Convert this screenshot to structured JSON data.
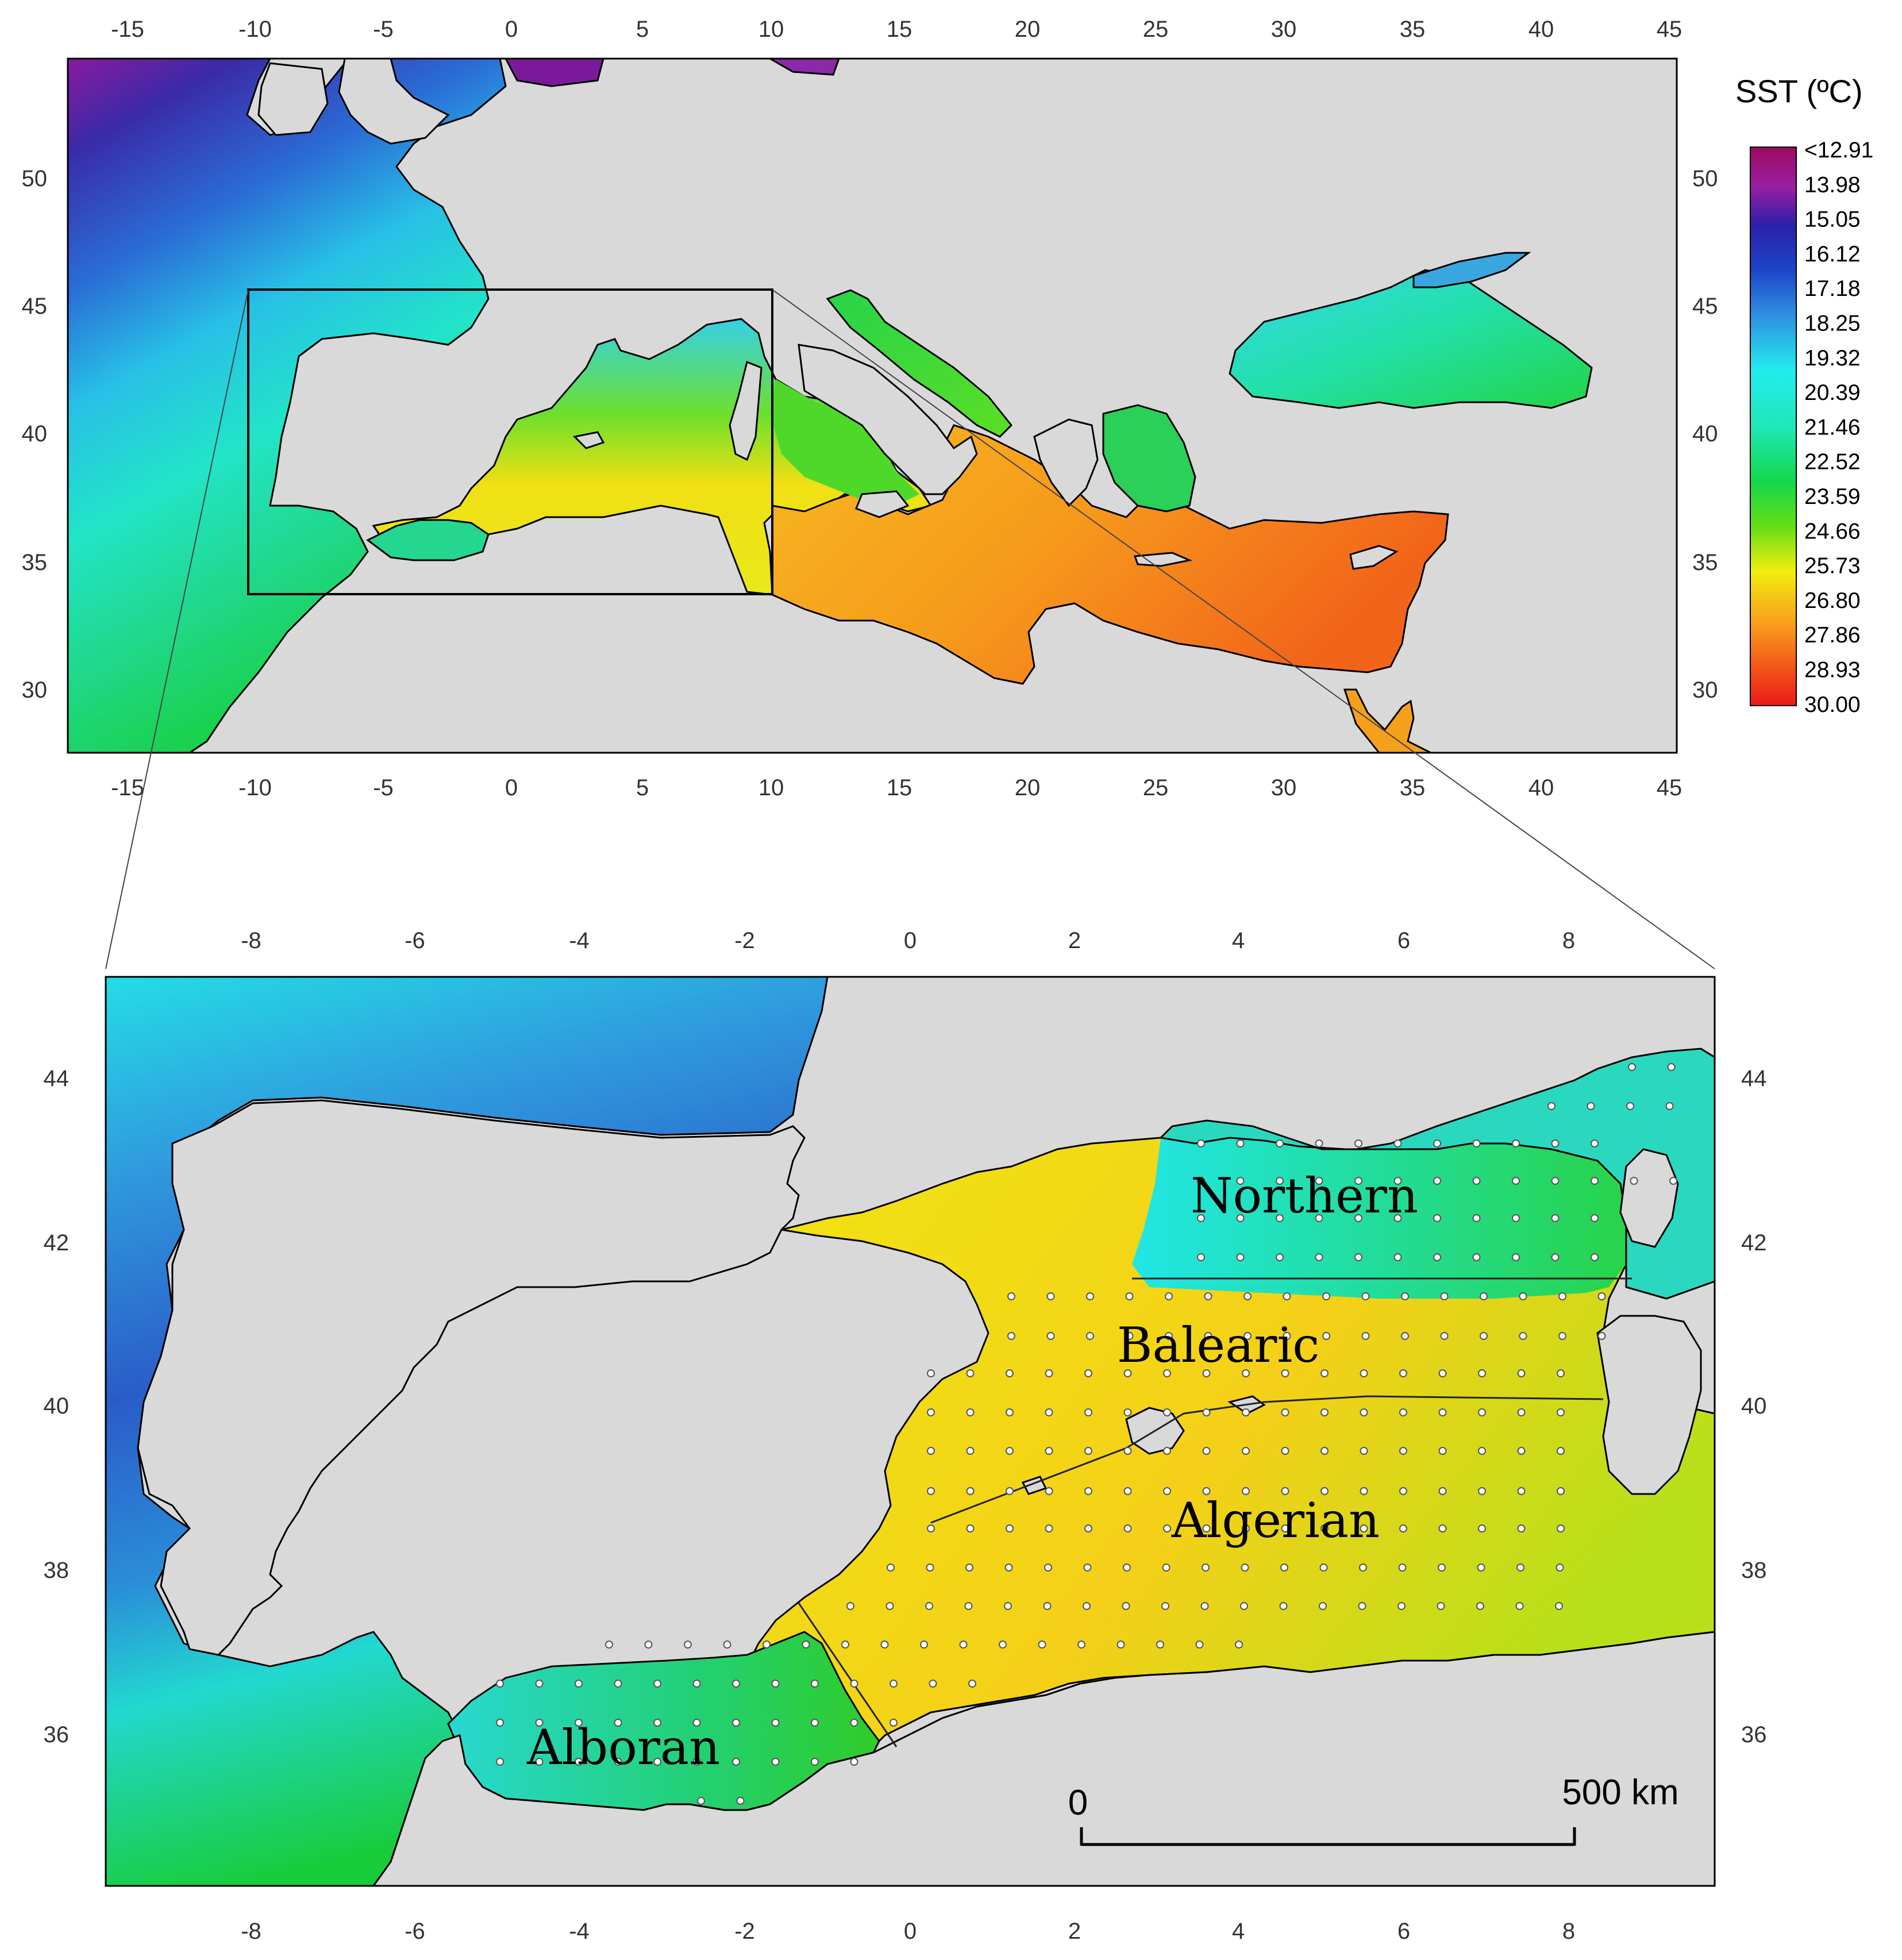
{
  "top_map": {
    "lon_ticks": [
      "-15",
      "-10",
      "-5",
      "0",
      "5",
      "10",
      "15",
      "20",
      "25",
      "30",
      "35",
      "40",
      "45"
    ],
    "lat_ticks": [
      "30",
      "35",
      "40",
      "45",
      "50"
    ]
  },
  "legend": {
    "title": "SST (ºC)",
    "labels": [
      "<12.91",
      "13.98",
      "15.05",
      "16.12",
      "17.18",
      "18.25",
      "19.32",
      "20.39",
      "21.46",
      "22.52",
      "23.59",
      "24.66",
      "25.73",
      "26.80",
      "27.86",
      "28.93",
      "30.00"
    ],
    "colors": [
      "#9b0a5e",
      "#9a1fa2",
      "#2c1fa8",
      "#1d45c8",
      "#2f6fd8",
      "#3b9be0",
      "#33c8ec",
      "#22ecee",
      "#1fe8b8",
      "#14d84a",
      "#33dc14",
      "#a8e614",
      "#f2ee10",
      "#f8c818",
      "#f8981c",
      "#f45a1a",
      "#ec1818"
    ]
  },
  "inset_map": {
    "lon_ticks": [
      "-8",
      "-6",
      "-4",
      "-2",
      "0",
      "2",
      "4",
      "6",
      "8"
    ],
    "lat_ticks": [
      "36",
      "38",
      "40",
      "42",
      "44"
    ],
    "regions": {
      "northern": "Northern",
      "balearic": "Balearic",
      "algerian": "Algerian",
      "alboran": "Alboran"
    },
    "scale_bar": {
      "start": "0",
      "end": "500 km"
    }
  }
}
